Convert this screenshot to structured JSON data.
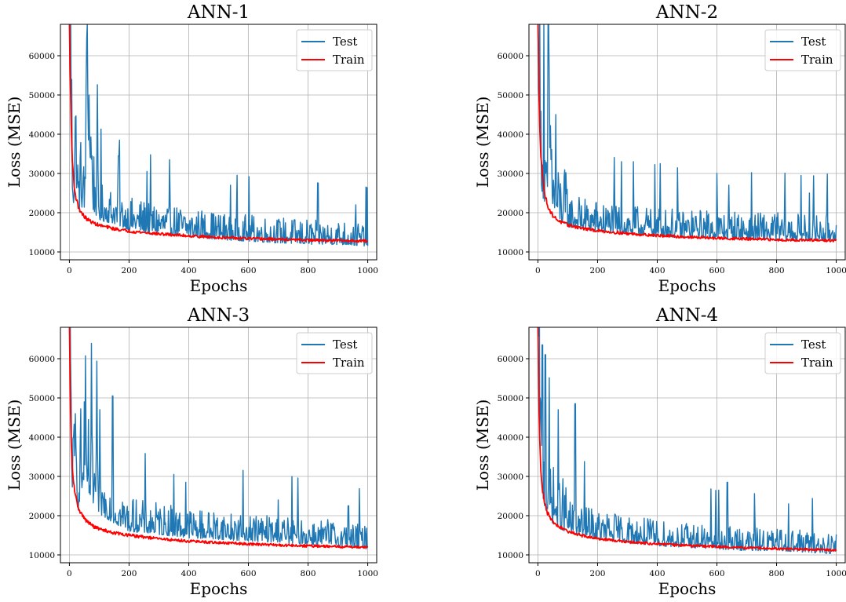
{
  "colors": {
    "test": "#1f77b4",
    "train": "#ff0000",
    "grid": "#b0b0b0",
    "axes": "#000000"
  },
  "chart_data": [
    {
      "type": "line",
      "title": "ANN-1",
      "xlabel": "Epochs",
      "ylabel": "Loss (MSE)",
      "xlim": [
        -30,
        1030
      ],
      "ylim": [
        8000,
        68000
      ],
      "xticks": [
        0,
        200,
        400,
        600,
        800,
        1000
      ],
      "yticks": [
        10000,
        20000,
        30000,
        40000,
        50000,
        60000
      ],
      "grid": true,
      "legend": "top-right",
      "series": [
        {
          "name": "Test",
          "color": "#1f77b4",
          "x": [
            0,
            5,
            10,
            15,
            20,
            30,
            40,
            50,
            60,
            80,
            100,
            150,
            200,
            300,
            400,
            500,
            600,
            700,
            800,
            900,
            1000
          ],
          "y": [
            68000,
            60000,
            30000,
            26000,
            38000,
            23000,
            27000,
            22000,
            52000,
            25000,
            22000,
            21000,
            19000,
            18000,
            17000,
            16000,
            15500,
            15000,
            14500,
            14500,
            14000
          ],
          "spikes": [
            [
              60,
              68000
            ],
            [
              165,
              34500
            ],
            [
              260,
              30500
            ],
            [
              540,
              27000
            ],
            [
              960,
              22000
            ]
          ]
        },
        {
          "name": "Train",
          "color": "#ff0000",
          "x": [
            0,
            5,
            10,
            15,
            20,
            30,
            40,
            50,
            60,
            80,
            100,
            150,
            200,
            300,
            400,
            500,
            600,
            700,
            800,
            900,
            1000
          ],
          "y": [
            68000,
            45000,
            33000,
            28000,
            24500,
            21500,
            20000,
            19000,
            18300,
            17400,
            16800,
            15900,
            15300,
            14600,
            14100,
            13700,
            13400,
            13200,
            13000,
            12900,
            12800
          ]
        }
      ]
    },
    {
      "type": "line",
      "title": "ANN-2",
      "xlabel": "Epochs",
      "ylabel": "Loss (MSE)",
      "xlim": [
        -30,
        1030
      ],
      "ylim": [
        8000,
        68000
      ],
      "xticks": [
        0,
        200,
        400,
        600,
        800,
        1000
      ],
      "yticks": [
        10000,
        20000,
        30000,
        40000,
        50000,
        60000
      ],
      "grid": true,
      "legend": "top-right",
      "series": [
        {
          "name": "Test",
          "color": "#1f77b4",
          "x": [
            0,
            5,
            10,
            15,
            20,
            30,
            40,
            50,
            60,
            80,
            100,
            150,
            200,
            300,
            400,
            500,
            600,
            700,
            800,
            900,
            1000
          ],
          "y": [
            68000,
            55000,
            35000,
            30000,
            28000,
            22000,
            40000,
            25000,
            22000,
            21000,
            20000,
            19000,
            18500,
            17500,
            17000,
            16500,
            16500,
            16000,
            16000,
            15500,
            16000
          ],
          "spikes": [
            [
              20,
              68000
            ],
            [
              35,
              68000
            ],
            [
              60,
              45000
            ],
            [
              280,
              33000
            ],
            [
              410,
              32500
            ],
            [
              600,
              30000
            ],
            [
              640,
              27000
            ],
            [
              910,
              25000
            ]
          ]
        },
        {
          "name": "Train",
          "color": "#ff0000",
          "x": [
            0,
            5,
            10,
            15,
            20,
            30,
            40,
            50,
            60,
            80,
            100,
            150,
            200,
            300,
            400,
            500,
            600,
            700,
            800,
            900,
            1000
          ],
          "y": [
            68000,
            45000,
            35000,
            30000,
            26000,
            22500,
            20500,
            19300,
            18500,
            17500,
            16900,
            16000,
            15400,
            14700,
            14200,
            13800,
            13500,
            13300,
            13100,
            13000,
            12900
          ]
        }
      ]
    },
    {
      "type": "line",
      "title": "ANN-3",
      "xlabel": "Epochs",
      "ylabel": "Loss (MSE)",
      "xlim": [
        -30,
        1030
      ],
      "ylim": [
        8000,
        68000
      ],
      "xticks": [
        0,
        200,
        400,
        600,
        800,
        1000
      ],
      "yticks": [
        10000,
        20000,
        30000,
        40000,
        50000,
        60000
      ],
      "grid": true,
      "legend": "top-right",
      "series": [
        {
          "name": "Test",
          "color": "#1f77b4",
          "x": [
            0,
            5,
            10,
            15,
            20,
            30,
            40,
            50,
            60,
            80,
            100,
            150,
            200,
            300,
            400,
            500,
            600,
            700,
            800,
            900,
            1000
          ],
          "y": [
            68000,
            53000,
            30000,
            28000,
            35000,
            26000,
            33000,
            24000,
            30000,
            27000,
            25000,
            22000,
            19500,
            18500,
            17500,
            17000,
            16500,
            16000,
            15500,
            15000,
            14000
          ],
          "spikes": [
            [
              20,
              46000
            ],
            [
              50,
              49000
            ],
            [
              145,
              50500
            ],
            [
              350,
              30500
            ],
            [
              390,
              28500
            ],
            [
              700,
              24000
            ],
            [
              935,
              22500
            ]
          ]
        },
        {
          "name": "Train",
          "color": "#ff0000",
          "x": [
            0,
            5,
            10,
            15,
            20,
            30,
            40,
            50,
            60,
            80,
            100,
            150,
            200,
            300,
            400,
            500,
            600,
            700,
            800,
            900,
            1000
          ],
          "y": [
            68000,
            40000,
            32000,
            28000,
            25000,
            22000,
            20500,
            19300,
            18500,
            17300,
            16600,
            15600,
            15000,
            14100,
            13500,
            13100,
            12800,
            12500,
            12300,
            12100,
            12000
          ]
        }
      ]
    },
    {
      "type": "line",
      "title": "ANN-4",
      "xlabel": "Epochs",
      "ylabel": "Loss (MSE)",
      "xlim": [
        -30,
        1030
      ],
      "ylim": [
        8000,
        68000
      ],
      "xticks": [
        0,
        200,
        400,
        600,
        800,
        1000
      ],
      "yticks": [
        10000,
        20000,
        30000,
        40000,
        50000,
        60000
      ],
      "grid": true,
      "legend": "top-right",
      "series": [
        {
          "name": "Test",
          "color": "#1f77b4",
          "x": [
            0,
            5,
            10,
            15,
            20,
            30,
            40,
            50,
            60,
            80,
            100,
            150,
            200,
            300,
            400,
            500,
            600,
            700,
            800,
            900,
            1000
          ],
          "y": [
            68000,
            50000,
            35000,
            30000,
            28000,
            25000,
            24000,
            22000,
            21000,
            20000,
            19000,
            18000,
            17000,
            16000,
            15000,
            14500,
            14000,
            13500,
            13500,
            13000,
            12500
          ],
          "spikes": [
            [
              15,
              63500
            ],
            [
              25,
              61000
            ],
            [
              125,
              48500
            ],
            [
              635,
              28500
            ],
            [
              840,
              23000
            ]
          ]
        },
        {
          "name": "Train",
          "color": "#ff0000",
          "x": [
            0,
            5,
            10,
            15,
            20,
            30,
            40,
            50,
            60,
            80,
            100,
            150,
            200,
            300,
            400,
            500,
            600,
            700,
            800,
            900,
            1000
          ],
          "y": [
            68000,
            42000,
            32000,
            27000,
            24000,
            21000,
            19500,
            18500,
            17700,
            16700,
            16000,
            14900,
            14200,
            13300,
            12800,
            12400,
            12100,
            11800,
            11600,
            11400,
            11200
          ]
        }
      ]
    }
  ]
}
